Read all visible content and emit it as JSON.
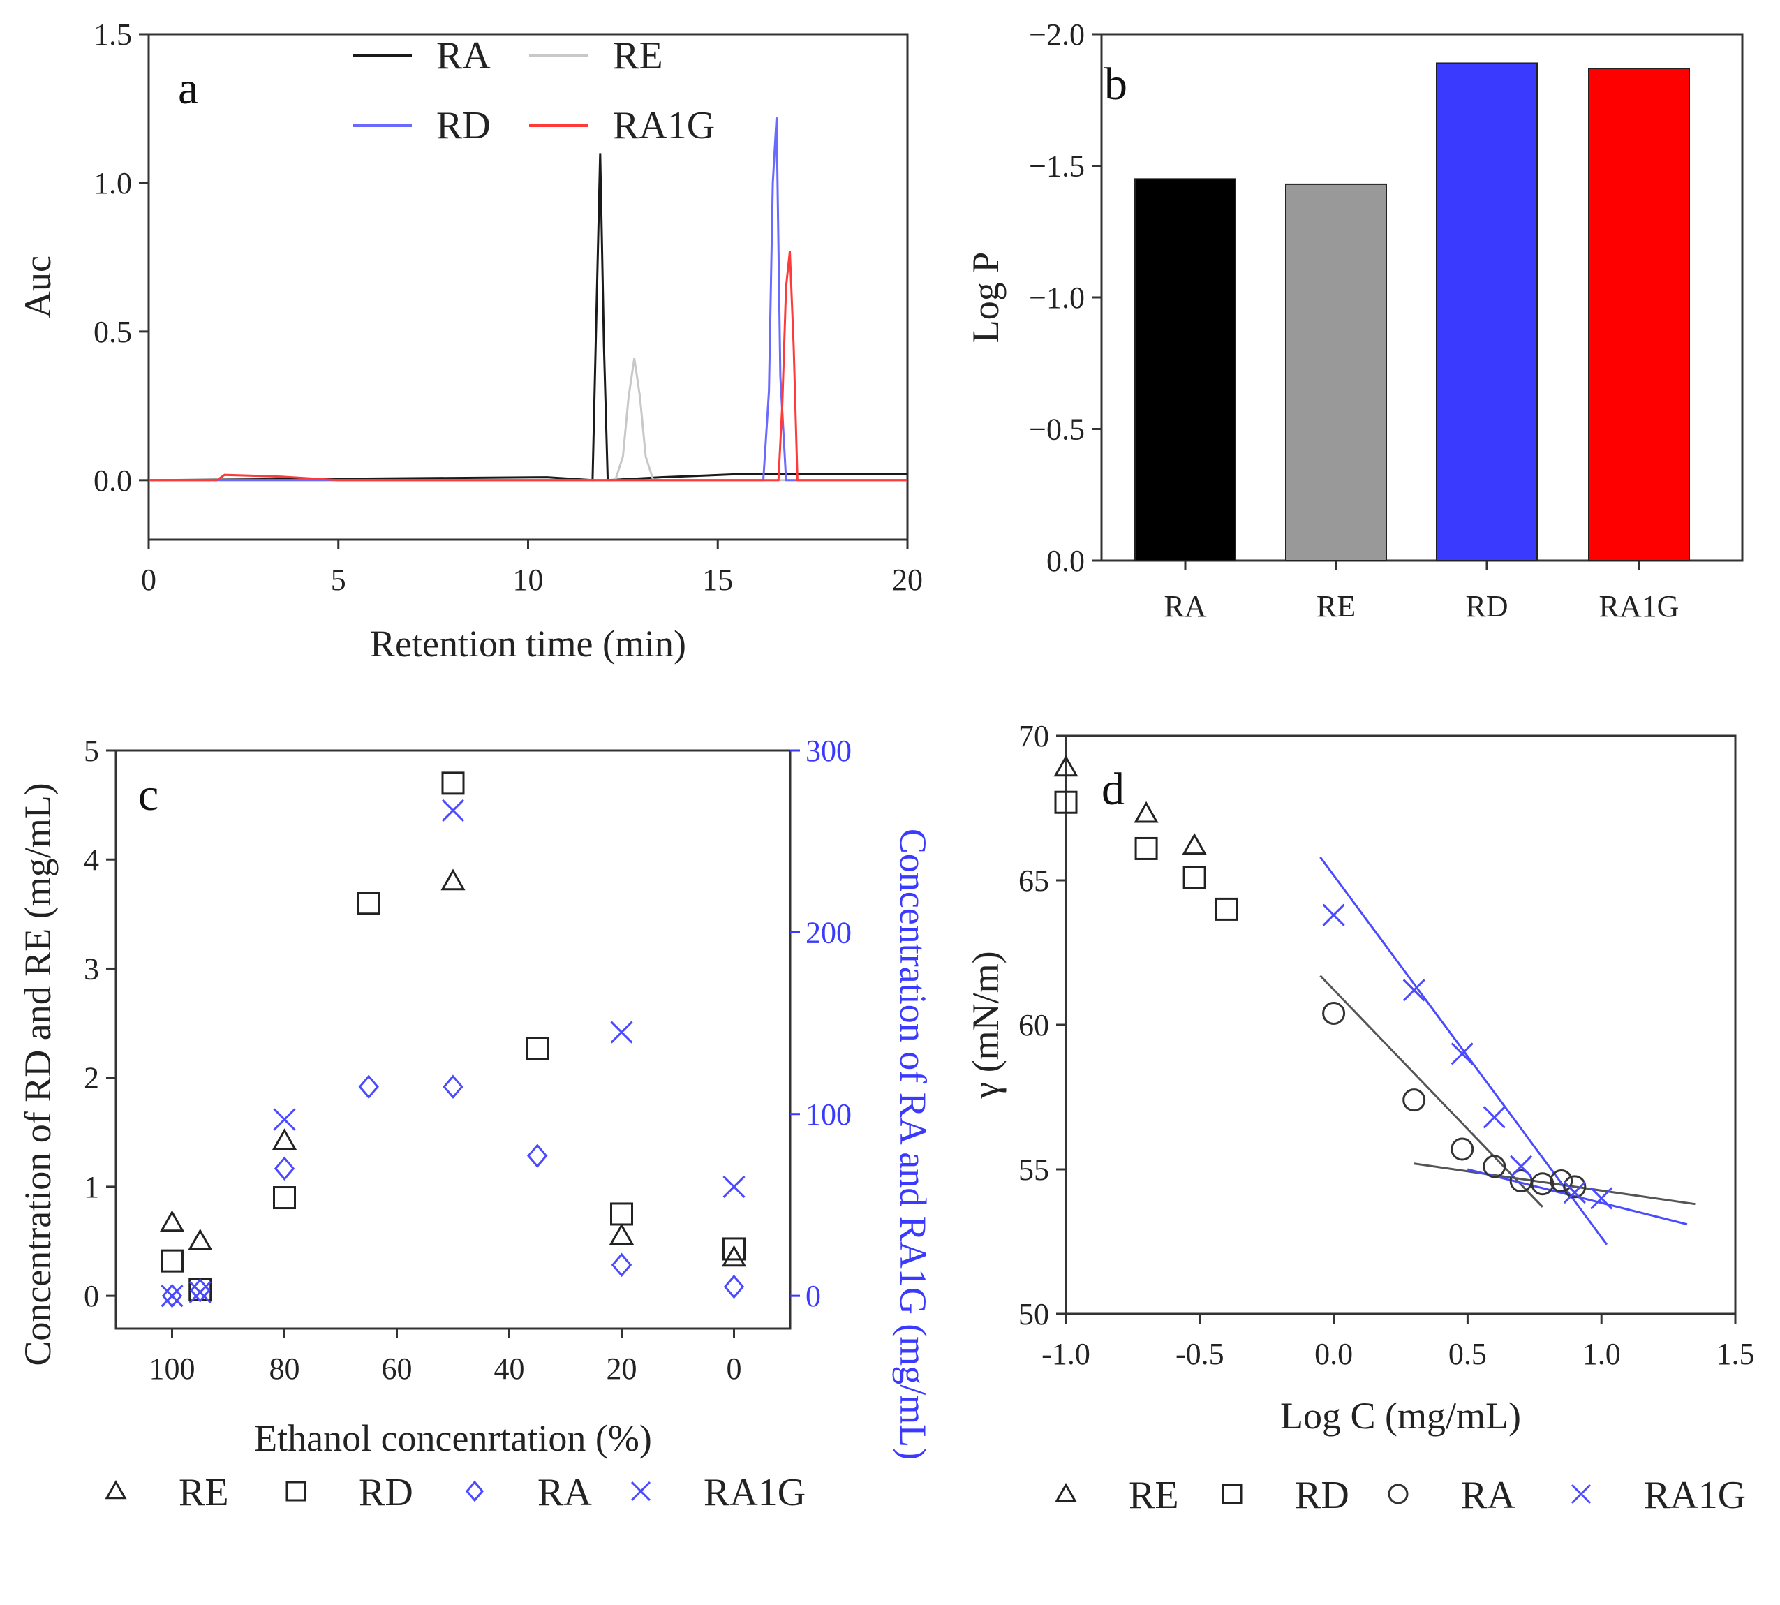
{
  "chart_data": [
    {
      "panel": "a",
      "type": "line",
      "title": "",
      "xlabel": "Retention time (min)",
      "ylabel": "Auc",
      "xlim": [
        0,
        20
      ],
      "ylim": [
        -0.2,
        1.5
      ],
      "xticks": [
        "0",
        "5",
        "10",
        "15",
        "20"
      ],
      "yticks": [
        "0.0",
        "0.5",
        "1.0",
        "1.5"
      ],
      "legend": [
        "RA",
        "RE",
        "RD",
        "RA1G"
      ],
      "legend_position": "top",
      "series": [
        {
          "name": "RA",
          "color": "#1a1a1a",
          "x": [
            0,
            10.5,
            11.7,
            11.8,
            11.9,
            12.0,
            12.1,
            13.5,
            15.5,
            20
          ],
          "y": [
            0.0,
            0.01,
            0.0,
            0.55,
            1.1,
            0.45,
            0.0,
            0.01,
            0.02,
            0.02
          ]
        },
        {
          "name": "RE",
          "color": "#c8c8c8",
          "x": [
            0,
            12.3,
            12.5,
            12.65,
            12.8,
            12.95,
            13.1,
            13.3,
            20
          ],
          "y": [
            0.0,
            0.0,
            0.08,
            0.28,
            0.41,
            0.28,
            0.08,
            0.0,
            0.0
          ]
        },
        {
          "name": "RD",
          "color": "#6a6aff",
          "x": [
            0,
            16.2,
            16.35,
            16.45,
            16.55,
            16.65,
            16.8,
            20
          ],
          "y": [
            0.0,
            0.0,
            0.3,
            1.0,
            1.22,
            0.35,
            0.0,
            0.0
          ]
        },
        {
          "name": "RA1G",
          "color": "#ff3a3a",
          "x": [
            0,
            1.8,
            2.0,
            3.5,
            5.0,
            16.6,
            16.7,
            16.8,
            16.9,
            17.0,
            17.1,
            20
          ],
          "y": [
            0.0,
            0.0,
            0.018,
            0.012,
            0.0,
            0.0,
            0.25,
            0.65,
            0.77,
            0.45,
            0.0,
            0.0
          ]
        }
      ]
    },
    {
      "panel": "b",
      "type": "bar",
      "title": "",
      "xlabel": "",
      "ylabel": "Log P",
      "ylim": [
        0.0,
        -2.0
      ],
      "yticks": [
        "0.0",
        "−0.5",
        "−1.0",
        "−1.5",
        "−2.0"
      ],
      "categories": [
        "RA",
        "RE",
        "RD",
        "RA1G"
      ],
      "values": [
        -1.45,
        -1.43,
        -1.89,
        -1.87
      ],
      "colors": [
        "#000000",
        "#999999",
        "#3a3aff",
        "#ff0000"
      ]
    },
    {
      "panel": "c",
      "type": "scatter",
      "title": "",
      "xlabel": "Ethanol concenrtation (%)",
      "ylabel": "Concentration of RD and RE (mg/mL)",
      "ylabel_right": "Concentration of RA and RA1G (mg/mL)",
      "xlim": [
        110,
        -10
      ],
      "ylim": [
        -0.3,
        5
      ],
      "ylim_right": [
        -18,
        300
      ],
      "xticks": [
        "100",
        "80",
        "60",
        "40",
        "20",
        "0"
      ],
      "yticks": [
        "0",
        "1",
        "2",
        "3",
        "4",
        "5"
      ],
      "yticks_right": [
        "0",
        "100",
        "200",
        "300"
      ],
      "legend": [
        "RE",
        "RD",
        "RA",
        "RA1G"
      ],
      "legend_position": "bottom",
      "series": [
        {
          "name": "RE",
          "axis": "left",
          "marker": "triangle",
          "color": "#222222",
          "x": [
            100,
            95,
            80,
            50,
            20,
            0
          ],
          "y": [
            0.67,
            0.5,
            1.42,
            3.8,
            0.55,
            0.35
          ]
        },
        {
          "name": "RD",
          "axis": "left",
          "marker": "square",
          "color": "#222222",
          "x": [
            100,
            95,
            80,
            65,
            50,
            35,
            20,
            0
          ],
          "y": [
            0.32,
            0.06,
            0.9,
            3.6,
            4.7,
            2.27,
            0.75,
            0.43
          ]
        },
        {
          "name": "RA",
          "axis": "right",
          "marker": "diamond",
          "color": "#4a4aff",
          "x": [
            100,
            95,
            80,
            65,
            50,
            35,
            20,
            0
          ],
          "y": [
            0,
            3,
            70,
            115,
            115,
            77,
            17,
            5
          ]
        },
        {
          "name": "RA1G",
          "axis": "right",
          "marker": "cross",
          "color": "#4a4aff",
          "x": [
            100,
            95,
            80,
            50,
            20,
            0
          ],
          "y": [
            0,
            2,
            97,
            267,
            145,
            60
          ]
        }
      ]
    },
    {
      "panel": "d",
      "type": "scatter",
      "title": "",
      "xlabel": "Log C (mg/mL)",
      "ylabel": "γ (mN/m)",
      "xlim": [
        -1.0,
        1.5
      ],
      "ylim": [
        50,
        70
      ],
      "xticks": [
        "-1.0",
        "-0.5",
        "0.0",
        "0.5",
        "1.0",
        "1.5"
      ],
      "yticks": [
        "50",
        "55",
        "60",
        "65",
        "70"
      ],
      "legend": [
        "RE",
        "RD",
        "RA",
        "RA1G"
      ],
      "legend_position": "bottom",
      "series": [
        {
          "name": "RE",
          "marker": "triangle",
          "color": "#222222",
          "x": [
            -1.0,
            -0.7,
            -0.52
          ],
          "y": [
            68.9,
            67.3,
            66.2
          ]
        },
        {
          "name": "RD",
          "marker": "square",
          "color": "#222222",
          "x": [
            -1.0,
            -0.7,
            -0.52,
            -0.4
          ],
          "y": [
            67.7,
            66.1,
            65.1,
            64.0
          ]
        },
        {
          "name": "RA",
          "marker": "circle",
          "color": "#333333",
          "x": [
            0.0,
            0.3,
            0.48,
            0.6,
            0.7,
            0.78,
            0.85,
            0.9
          ],
          "y": [
            60.4,
            57.4,
            55.7,
            55.1,
            54.6,
            54.5,
            54.6,
            54.4
          ]
        },
        {
          "name": "RA1G",
          "marker": "cross",
          "color": "#4a4aff",
          "x": [
            0.0,
            0.3,
            0.48,
            0.6,
            0.7,
            0.9,
            1.0
          ],
          "y": [
            63.8,
            61.2,
            59.0,
            56.8,
            55.1,
            54.2,
            54.0
          ]
        }
      ],
      "fit_lines": [
        {
          "name": "RA-fit-steep",
          "color": "#555555",
          "x": [
            -0.05,
            0.78
          ],
          "y": [
            61.7,
            53.7
          ]
        },
        {
          "name": "RA-fit-flat",
          "color": "#555555",
          "x": [
            0.3,
            1.35
          ],
          "y": [
            55.2,
            53.8
          ]
        },
        {
          "name": "RA1G-fit-steep",
          "color": "#4a4aff",
          "x": [
            -0.05,
            1.02
          ],
          "y": [
            65.8,
            52.4
          ]
        },
        {
          "name": "RA1G-fit-flat",
          "color": "#4a4aff",
          "x": [
            0.5,
            1.32
          ],
          "y": [
            55.0,
            53.1
          ]
        }
      ]
    }
  ]
}
